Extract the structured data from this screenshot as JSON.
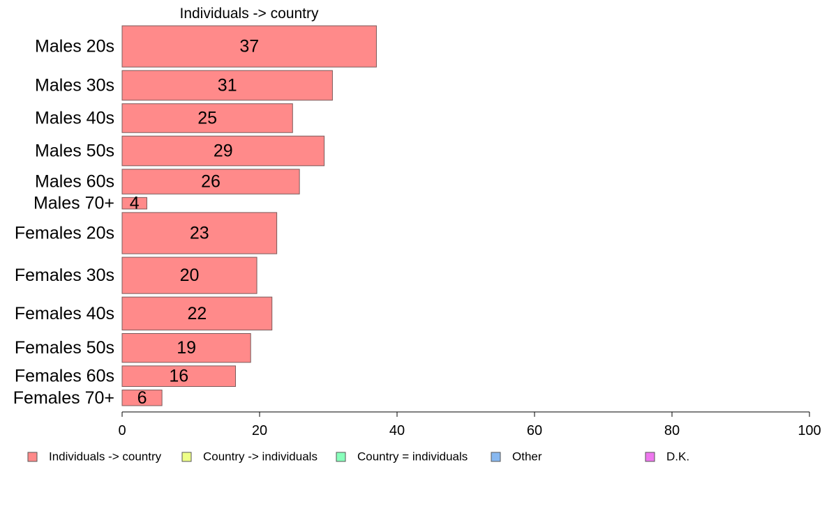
{
  "chart_data": {
    "type": "bar",
    "orientation": "horizontal",
    "title": "Individuals -> country",
    "xlabel": "",
    "ylabel": "",
    "xlim": [
      0,
      100
    ],
    "x_ticks": [
      "0",
      "20",
      "40",
      "60",
      "80",
      "100"
    ],
    "grid": false,
    "legend_position": "bottom",
    "categories": [
      "Males 20s",
      "Males 30s",
      "Males 40s",
      "Males 50s",
      "Males 60s",
      "Males 70+",
      "Females 20s",
      "Females 30s",
      "Females 40s",
      "Females 50s",
      "Females 60s",
      "Females 70+"
    ],
    "values": [
      37,
      30.6,
      24.8,
      29.4,
      25.8,
      3.6,
      22.5,
      19.6,
      21.8,
      18.7,
      16.5,
      5.8
    ],
    "value_labels": [
      "37",
      "31",
      "25",
      "29",
      "26",
      "4",
      "23",
      "20",
      "22",
      "19",
      "16",
      "6"
    ],
    "relative_sample_sizes": [
      100,
      72,
      70,
      72,
      60,
      28,
      100,
      88,
      80,
      70,
      50,
      38
    ],
    "series": [
      {
        "name": "Individuals -> country",
        "color": "#ff8a8a"
      },
      {
        "name": "Country -> individuals",
        "color": "#eeff88"
      },
      {
        "name": "Country = individuals",
        "color": "#88ffbb"
      },
      {
        "name": "Other",
        "color": "#88b8f0"
      },
      {
        "name": "D.K.",
        "color": "#ee77ee"
      }
    ],
    "bar_color": "#ff8a8a",
    "bar_stroke": "#7a5a5a"
  }
}
